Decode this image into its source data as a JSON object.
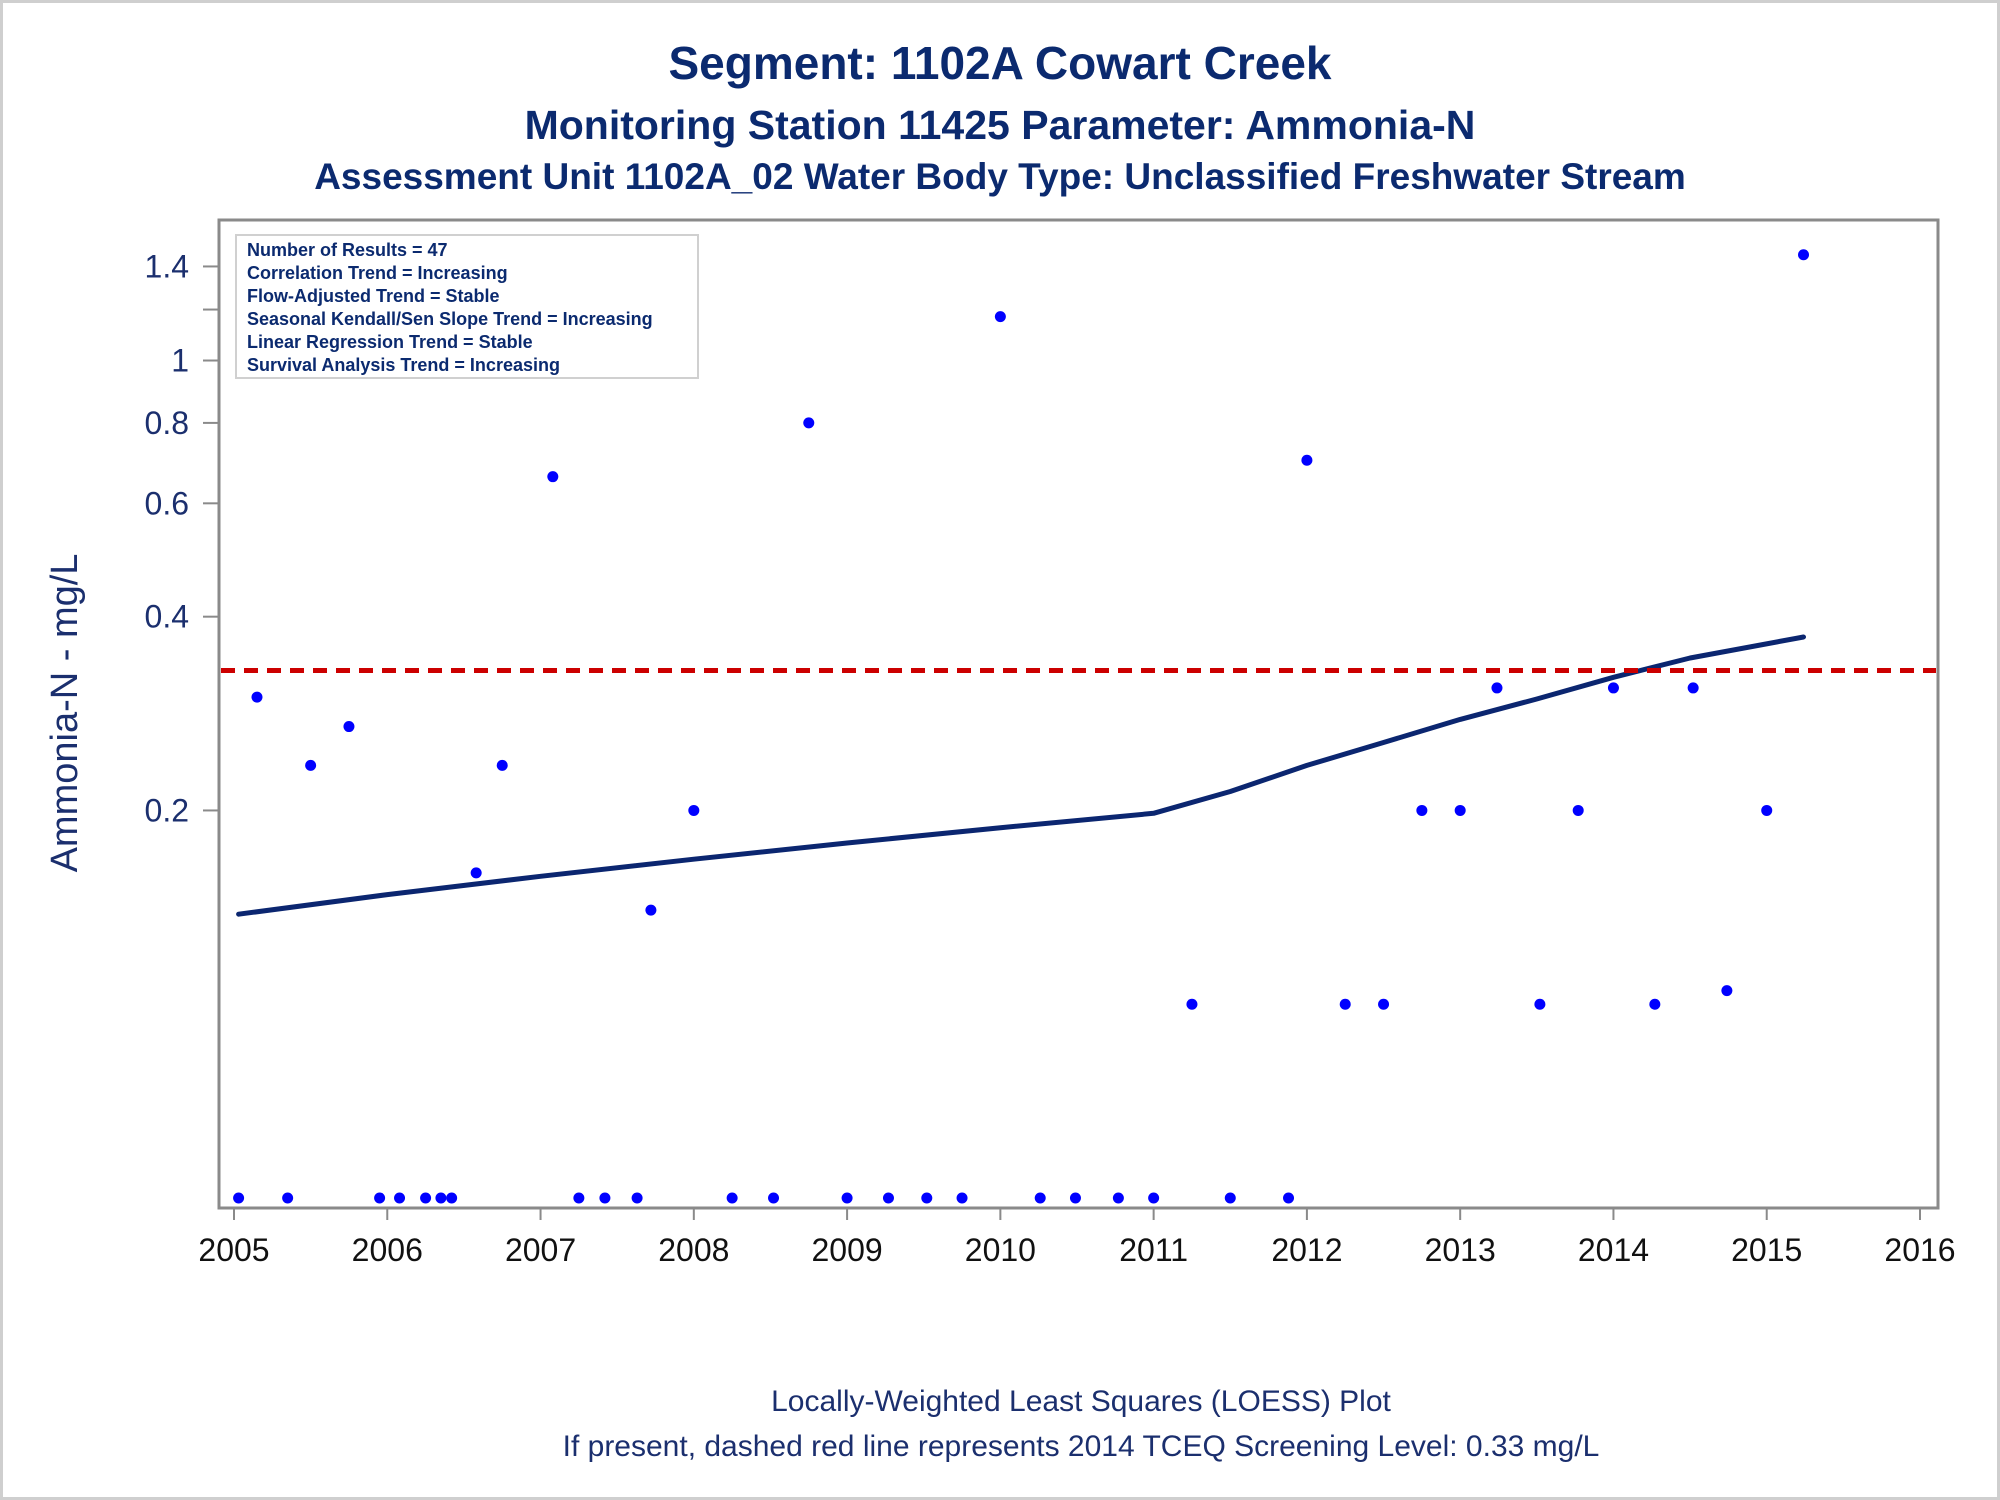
{
  "titles": {
    "line1": "Segment: 1102A  Cowart Creek",
    "line2": "Monitoring Station 11425 Parameter: Ammonia-N",
    "line3": "Assessment Unit 1102A_02   Water Body Type: Unclassified Freshwater Stream"
  },
  "legend_box": {
    "lines": [
      "Number of Results = 47",
      "Correlation Trend = Increasing",
      "Flow-Adjusted Trend = Stable",
      "Seasonal Kendall/Sen Slope Trend = Increasing",
      "Linear Regression Trend = Stable",
      "Survival Analysis Trend = Increasing"
    ]
  },
  "footnotes": {
    "line1": "Locally-Weighted Least Squares (LOESS) Plot",
    "line2": "If present, dashed red line represents 2014 TCEQ Screening Level: 0.33 mg/L"
  },
  "colors": {
    "points": "#0000ff",
    "loess_line": "#0b2670",
    "screening_line": "#cc0000",
    "axis": "#8a8a8a"
  },
  "chart_data": {
    "type": "scatter",
    "title": "Segment: 1102A  Cowart Creek",
    "xlabel": "",
    "ylabel": "Ammonia-N - mg/L",
    "xlim": [
      2005,
      2016
    ],
    "x_ticks": [
      2005,
      2006,
      2007,
      2008,
      2009,
      2010,
      2011,
      2012,
      2013,
      2014,
      2015,
      2016
    ],
    "y_scale": "log",
    "ylim": [
      0.05,
      1.55
    ],
    "y_ticks": [
      0.2,
      0.4,
      0.6,
      0.8,
      1,
      1.4
    ],
    "y_minor_ticks": [
      1.2
    ],
    "grid": false,
    "points": [
      [
        2005.03,
        0.05
      ],
      [
        2005.15,
        0.3
      ],
      [
        2005.35,
        0.05
      ],
      [
        2005.5,
        0.235
      ],
      [
        2005.75,
        0.27
      ],
      [
        2005.95,
        0.05
      ],
      [
        2006.08,
        0.05
      ],
      [
        2006.25,
        0.05
      ],
      [
        2006.35,
        0.05
      ],
      [
        2006.42,
        0.05
      ],
      [
        2006.58,
        0.16
      ],
      [
        2006.75,
        0.235
      ],
      [
        2007.08,
        0.66
      ],
      [
        2007.25,
        0.05
      ],
      [
        2007.42,
        0.05
      ],
      [
        2007.63,
        0.05
      ],
      [
        2007.72,
        0.14
      ],
      [
        2008.0,
        0.2
      ],
      [
        2008.25,
        0.05
      ],
      [
        2008.52,
        0.05
      ],
      [
        2008.75,
        0.8
      ],
      [
        2009.0,
        0.05
      ],
      [
        2009.27,
        0.05
      ],
      [
        2009.52,
        0.05
      ],
      [
        2009.75,
        0.05
      ],
      [
        2010.0,
        1.17
      ],
      [
        2010.26,
        0.05
      ],
      [
        2010.49,
        0.05
      ],
      [
        2010.77,
        0.05
      ],
      [
        2011.0,
        0.05
      ],
      [
        2011.25,
        0.1
      ],
      [
        2011.5,
        0.05
      ],
      [
        2011.88,
        0.05
      ],
      [
        2012.0,
        0.7
      ],
      [
        2012.25,
        0.1
      ],
      [
        2012.5,
        0.1
      ],
      [
        2012.75,
        0.2
      ],
      [
        2013.0,
        0.2
      ],
      [
        2013.24,
        0.31
      ],
      [
        2013.52,
        0.1
      ],
      [
        2013.77,
        0.2
      ],
      [
        2014.0,
        0.31
      ],
      [
        2014.27,
        0.1
      ],
      [
        2014.52,
        0.31
      ],
      [
        2014.74,
        0.105
      ],
      [
        2015.0,
        0.2
      ],
      [
        2015.24,
        1.46
      ]
    ],
    "series": [
      {
        "type": "line",
        "values": [
          [
            2005.03,
            0.138
          ],
          [
            2006.0,
            0.148
          ],
          [
            2007.0,
            0.158
          ],
          [
            2008.0,
            0.168
          ],
          [
            2009.0,
            0.178
          ],
          [
            2010.0,
            0.188
          ],
          [
            2011.0,
            0.198
          ],
          [
            2011.5,
            0.214
          ],
          [
            2012.0,
            0.235
          ],
          [
            2012.5,
            0.255
          ],
          [
            2013.0,
            0.277
          ],
          [
            2013.5,
            0.298
          ],
          [
            2014.0,
            0.322
          ],
          [
            2014.5,
            0.345
          ],
          [
            2015.24,
            0.372
          ]
        ]
      },
      {
        "type": "hline",
        "y": 0.33
      }
    ]
  }
}
